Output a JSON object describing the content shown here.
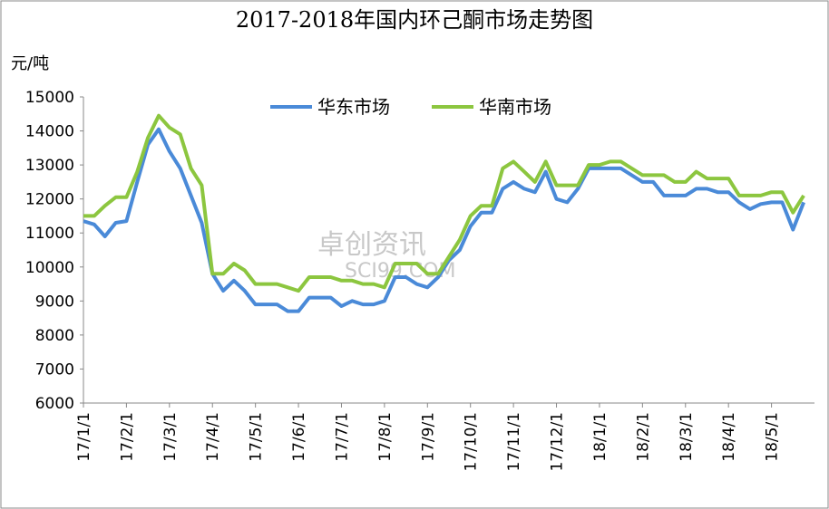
{
  "chart_data": {
    "type": "line",
    "title": "2017-2018年国内环己酮市场走势图",
    "y_label": "元/吨",
    "watermark": [
      "卓创资讯",
      "SCI99.COM"
    ],
    "categories": [
      "17/1/1",
      null,
      null,
      null,
      "17/2/1",
      null,
      null,
      null,
      "17/3/1",
      null,
      null,
      null,
      "17/4/1",
      null,
      null,
      null,
      "17/5/1",
      null,
      null,
      null,
      "17/6/1",
      null,
      null,
      null,
      "17/7/1",
      null,
      null,
      null,
      "17/8/1",
      null,
      null,
      null,
      "17/9/1",
      null,
      null,
      null,
      "17/10/1",
      null,
      null,
      null,
      "17/11/1",
      null,
      null,
      null,
      "17/12/1",
      null,
      null,
      null,
      "18/1/1",
      null,
      null,
      null,
      "18/2/1",
      null,
      null,
      null,
      "18/3/1",
      null,
      null,
      null,
      "18/4/1",
      null,
      null,
      null,
      "18/5/1",
      null,
      null,
      null
    ],
    "series": [
      {
        "name": "华东市场",
        "color": "#4a8ad8",
        "values": [
          11350,
          11250,
          10900,
          11300,
          11350,
          12500,
          13600,
          14050,
          13400,
          12900,
          12100,
          11300,
          9800,
          9300,
          9600,
          9300,
          8900,
          8900,
          8900,
          8700,
          8700,
          9100,
          9100,
          9100,
          8850,
          9000,
          8900,
          8900,
          9000,
          9700,
          9700,
          9500,
          9400,
          9700,
          10200,
          10500,
          11200,
          11600,
          11600,
          12300,
          12500,
          12300,
          12200,
          12800,
          12000,
          11900,
          12300,
          12900,
          12900,
          12900,
          12900,
          12700,
          12500,
          12500,
          12100,
          12100,
          12100,
          12300,
          12300,
          12200,
          12200,
          11900,
          11700,
          11850,
          11900,
          11900,
          11100,
          11900
        ]
      },
      {
        "name": "华南市场",
        "color": "#8cc63f",
        "values": [
          11500,
          11500,
          11800,
          12050,
          12050,
          12800,
          13800,
          14450,
          14100,
          13900,
          12900,
          12400,
          9800,
          9800,
          10100,
          9900,
          9500,
          9500,
          9500,
          9400,
          9300,
          9700,
          9700,
          9700,
          9600,
          9600,
          9500,
          9500,
          9400,
          10100,
          10100,
          10100,
          9800,
          9800,
          10300,
          10800,
          11500,
          11800,
          11800,
          12900,
          13100,
          12800,
          12500,
          13100,
          12400,
          12400,
          12400,
          13000,
          13000,
          13100,
          13100,
          12900,
          12700,
          12700,
          12700,
          12500,
          12500,
          12800,
          12600,
          12600,
          12600,
          12100,
          12100,
          12100,
          12200,
          12200,
          11600,
          12100
        ]
      }
    ],
    "ylim": [
      6000,
      15000
    ],
    "yticks": [
      6000,
      7000,
      8000,
      9000,
      10000,
      11000,
      12000,
      13000,
      14000,
      15000
    ],
    "grid": false
  }
}
